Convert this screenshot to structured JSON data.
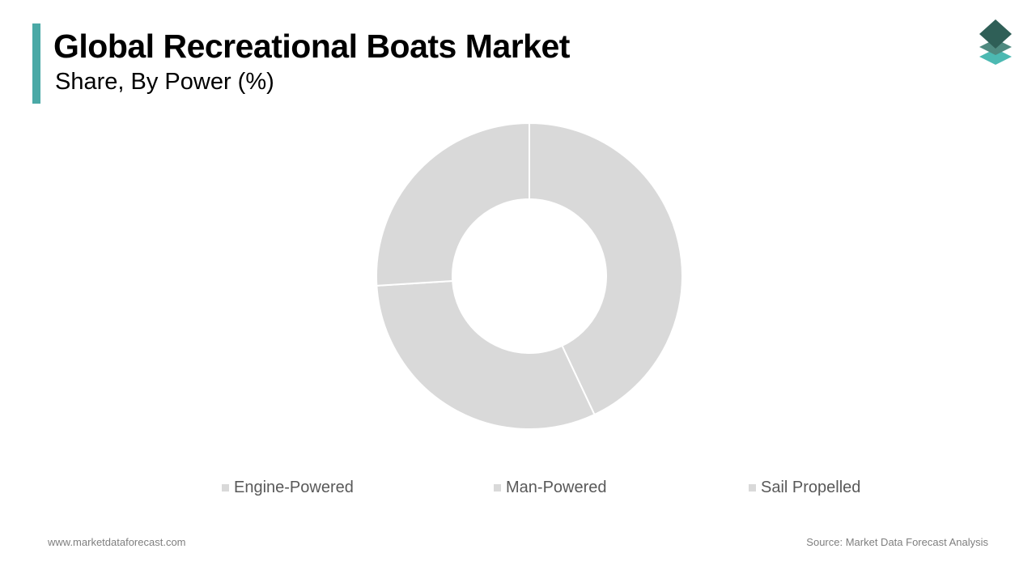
{
  "header": {
    "title": "Global Recreational Boats Market",
    "subtitle": "Share, By Power (%)"
  },
  "colors": {
    "accent": "#4aa9a6",
    "slice": "#d9d9d9",
    "slice_border": "#ffffff",
    "legend_text": "#595959",
    "footer_text": "#7f7f7f",
    "logo_top": "#2f5f57",
    "logo_middle": "#4f8a80",
    "logo_bottom": "#4cb9b2"
  },
  "logo": {
    "icon": "stacked-layers-icon"
  },
  "chart_data": {
    "type": "pie",
    "style": "donut",
    "categories": [
      "Engine-Powered",
      "Man-Powered",
      "Sail Propelled"
    ],
    "values": [
      43,
      31,
      26
    ],
    "value_unit": "%",
    "data_labels_shown": false,
    "legend_position": "bottom"
  },
  "footer": {
    "website": "www.marketdataforecast.com",
    "source": "Source: Market Data Forecast Analysis"
  }
}
